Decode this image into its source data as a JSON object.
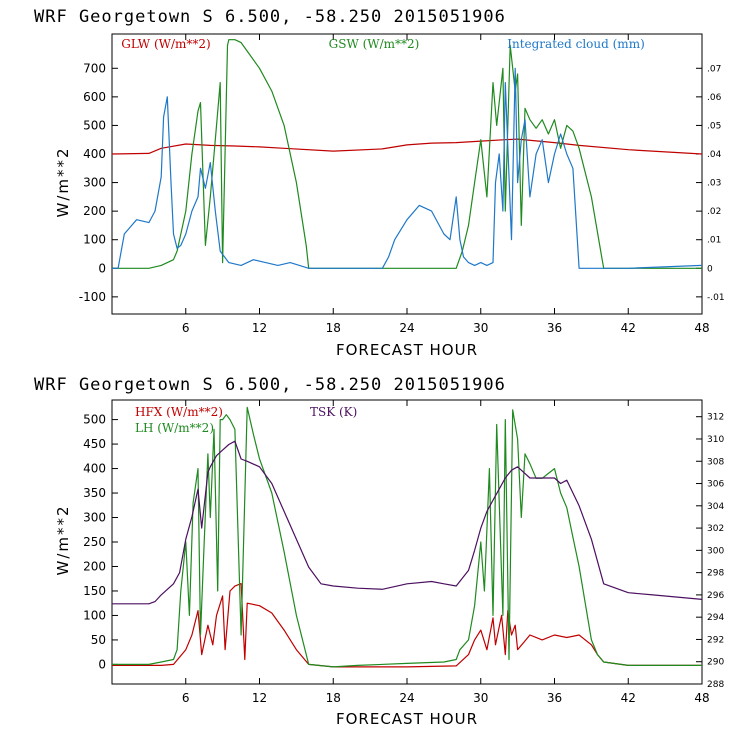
{
  "chart_data": [
    {
      "type": "line",
      "title": "WRF   Georgetown S   6.500, -58.250  2015051906",
      "xlabel": "FORECAST HOUR",
      "ylabel": "W/m**2",
      "xlim": [
        0,
        48
      ],
      "ylim": [
        -160,
        820
      ],
      "y2lim": [
        -0.016,
        0.082
      ],
      "xticks": [
        "6",
        "12",
        "18",
        "24",
        "30",
        "36",
        "42",
        "48"
      ],
      "yticks": [
        "-100",
        "0",
        "100",
        "200",
        "300",
        "400",
        "500",
        "600",
        "700"
      ],
      "y2ticks": [
        "-.01",
        "0",
        ".01",
        ".02",
        ".03",
        ".04",
        ".05",
        ".06",
        ".07"
      ],
      "series": [
        {
          "name": "GLW (W/m**2)",
          "color": "#c00000",
          "axis": "left",
          "x": [
            0,
            3,
            4,
            6,
            8,
            10,
            12,
            14,
            18,
            22,
            24,
            26,
            28,
            30,
            32,
            33,
            36,
            38,
            42,
            48
          ],
          "y": [
            400,
            402,
            420,
            435,
            430,
            428,
            425,
            420,
            410,
            418,
            432,
            438,
            440,
            445,
            450,
            452,
            440,
            430,
            415,
            400
          ]
        },
        {
          "name": "GSW (W/m**2)",
          "color": "#1f8a1f",
          "axis": "left",
          "x": [
            0,
            3,
            4,
            5,
            5.3,
            6,
            6.5,
            7,
            7.2,
            7.6,
            8,
            8.4,
            8.8,
            9,
            9.4,
            9.5,
            10,
            10.5,
            11,
            12,
            13,
            14,
            15,
            15.8,
            16,
            18,
            24,
            27,
            28,
            28.5,
            29,
            29.5,
            30,
            30.5,
            31,
            31.3,
            31.8,
            32,
            32.4,
            32.8,
            33,
            33.3,
            33.6,
            34,
            34.5,
            35,
            35.5,
            36,
            36.5,
            37,
            37.5,
            38,
            39,
            39.8,
            40,
            42,
            48
          ],
          "y": [
            0,
            0,
            10,
            30,
            60,
            200,
            400,
            550,
            580,
            80,
            250,
            450,
            650,
            20,
            780,
            800,
            800,
            790,
            760,
            700,
            620,
            500,
            300,
            80,
            0,
            0,
            0,
            0,
            0,
            60,
            150,
            300,
            450,
            250,
            650,
            500,
            700,
            200,
            780,
            620,
            680,
            150,
            560,
            520,
            490,
            520,
            470,
            520,
            420,
            500,
            480,
            420,
            250,
            50,
            0,
            0,
            0
          ]
        },
        {
          "name": "Integrated cloud (mm)",
          "color": "#1f78c8",
          "axis": "right",
          "x": [
            0,
            0.5,
            1,
            2,
            3,
            3.5,
            4,
            4.2,
            4.5,
            4.8,
            5,
            5.3,
            5.6,
            6,
            6.5,
            7,
            7.2,
            7.6,
            8,
            8.4,
            8.8,
            9.5,
            10.5,
            11.5,
            12.5,
            13.5,
            14.5,
            16,
            18,
            22,
            22.5,
            23,
            24,
            25,
            26,
            27,
            27.5,
            28,
            28.3,
            28.6,
            29,
            29.5,
            30,
            30.5,
            31,
            31.2,
            31.5,
            31.8,
            32,
            32.5,
            32.8,
            33,
            33.3,
            33.6,
            34,
            34.5,
            35,
            35.5,
            36,
            36.5,
            37,
            37.5,
            38,
            42,
            48
          ],
          "y": [
            0,
            0,
            0.012,
            0.017,
            0.016,
            0.02,
            0.032,
            0.053,
            0.06,
            0.03,
            0.012,
            0.007,
            0.008,
            0.012,
            0.02,
            0.025,
            0.035,
            0.028,
            0.037,
            0.02,
            0.006,
            0.002,
            0.001,
            0.003,
            0.002,
            0.001,
            0.002,
            0,
            0,
            0,
            0.004,
            0.01,
            0.017,
            0.022,
            0.02,
            0.012,
            0.01,
            0.025,
            0.01,
            0.004,
            0.002,
            0.001,
            0.002,
            0.001,
            0.002,
            0.03,
            0.04,
            0.02,
            0.065,
            0.01,
            0.07,
            0.03,
            0.045,
            0.052,
            0.025,
            0.04,
            0.045,
            0.03,
            0.04,
            0.047,
            0.04,
            0.035,
            0,
            0,
            0.001
          ]
        }
      ]
    },
    {
      "type": "line",
      "title": "WRF   Georgetown S   6.500, -58.250  2015051906",
      "xlabel": "FORECAST HOUR",
      "ylabel": "W/m**2",
      "xlim": [
        0,
        48
      ],
      "ylim": [
        -40,
        540
      ],
      "y2lim": [
        288,
        313.5
      ],
      "xticks": [
        "6",
        "12",
        "18",
        "24",
        "30",
        "36",
        "42",
        "48"
      ],
      "yticks": [
        "0",
        "50",
        "100",
        "150",
        "200",
        "250",
        "300",
        "350",
        "400",
        "450",
        "500"
      ],
      "y2ticks": [
        "288",
        "290",
        "292",
        "294",
        "296",
        "298",
        "300",
        "302",
        "304",
        "306",
        "308",
        "310",
        "312"
      ],
      "series": [
        {
          "name": "HFX (W/m**2)",
          "color": "#c00000",
          "axis": "left",
          "x": [
            0,
            3,
            4,
            5,
            5.5,
            6,
            6.5,
            7,
            7.3,
            7.8,
            8.2,
            8.5,
            9,
            9.2,
            9.6,
            10,
            10.5,
            10.8,
            11,
            12,
            13,
            14,
            15,
            16,
            18,
            24,
            28,
            29,
            29.5,
            30,
            30.5,
            31,
            31.2,
            31.7,
            32,
            32.2,
            32.5,
            32.8,
            33,
            33.5,
            34,
            35,
            36,
            37,
            38,
            39,
            39.5,
            40,
            42,
            48
          ],
          "y": [
            -2,
            -2,
            -2,
            0,
            15,
            30,
            60,
            110,
            20,
            80,
            40,
            100,
            140,
            30,
            150,
            160,
            165,
            10,
            125,
            120,
            105,
            70,
            30,
            0,
            -5,
            -5,
            -3,
            20,
            50,
            70,
            30,
            95,
            40,
            100,
            20,
            110,
            60,
            80,
            30,
            45,
            60,
            50,
            60,
            55,
            60,
            40,
            20,
            5,
            -2,
            -2
          ]
        },
        {
          "name": "LH  (W/m**2)",
          "color": "#1f8a1f",
          "axis": "left",
          "x": [
            0,
            3,
            4,
            5,
            5.3,
            5.6,
            6,
            6.3,
            6.6,
            7,
            7.2,
            7.5,
            7.8,
            8,
            8.3,
            8.6,
            8.8,
            9,
            9.3,
            9.6,
            10,
            10.5,
            11,
            11.5,
            12,
            13,
            14,
            15,
            16,
            18,
            20,
            24,
            27,
            28,
            28.3,
            29,
            29.5,
            30,
            30.3,
            30.7,
            31,
            31.3,
            31.8,
            32,
            32.3,
            32.6,
            33,
            33.3,
            33.6,
            34,
            34.5,
            35,
            35.5,
            36,
            36.5,
            37,
            37.5,
            38,
            39,
            39.5,
            40,
            42,
            48
          ],
          "y": [
            0,
            0,
            5,
            10,
            30,
            150,
            250,
            100,
            330,
            400,
            60,
            250,
            430,
            300,
            480,
            150,
            500,
            500,
            510,
            500,
            480,
            60,
            525,
            470,
            420,
            350,
            230,
            100,
            0,
            -5,
            -2,
            2,
            5,
            10,
            30,
            50,
            120,
            250,
            150,
            400,
            100,
            490,
            100,
            500,
            10,
            520,
            460,
            300,
            430,
            410,
            380,
            380,
            390,
            400,
            350,
            320,
            260,
            200,
            50,
            20,
            5,
            -2,
            -2
          ]
        },
        {
          "name": "TSK (K)",
          "color": "#4b1060",
          "axis": "right",
          "x": [
            0,
            3,
            3.5,
            4,
            5,
            5.5,
            6,
            6.5,
            7,
            7.3,
            7.8,
            8,
            8.5,
            9,
            9.5,
            10,
            10.5,
            11,
            12,
            13,
            14,
            15,
            16,
            17,
            18,
            20,
            22,
            24,
            26,
            27,
            28,
            28.5,
            29,
            29.5,
            30,
            30.5,
            31,
            31.5,
            32,
            32.5,
            33,
            33.5,
            34,
            35,
            36,
            36.5,
            37,
            38,
            39,
            40,
            42,
            44,
            48
          ],
          "y": [
            295.2,
            295.2,
            295.4,
            296,
            297,
            298,
            301,
            303,
            305.5,
            302,
            307,
            307.5,
            308.5,
            309,
            309.5,
            309.8,
            308.2,
            308,
            307.5,
            306,
            303.5,
            301,
            298.5,
            297,
            296.8,
            296.6,
            296.5,
            297,
            297.2,
            297,
            296.8,
            297.5,
            298.2,
            300,
            302,
            303.5,
            304.5,
            305.5,
            306.5,
            307.2,
            307.5,
            307,
            306.5,
            306.5,
            306.5,
            306,
            306.3,
            304,
            301,
            297,
            296.2,
            296,
            295.6
          ]
        }
      ]
    }
  ]
}
